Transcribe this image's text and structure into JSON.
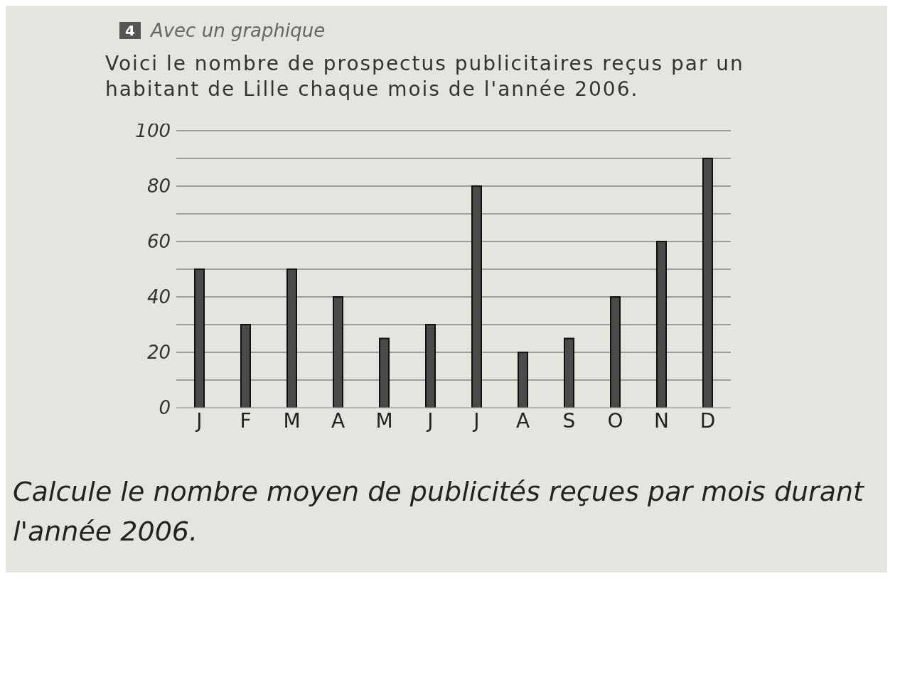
{
  "chart_data": {
    "type": "bar",
    "title": "Avec un graphique",
    "subtitle": "Voici le nombre de prospectus publicitaires reçus par un habitant de Lille chaque mois de l'année 2006.",
    "categories": [
      "J",
      "F",
      "M",
      "A",
      "M",
      "J",
      "J",
      "A",
      "S",
      "O",
      "N",
      "D"
    ],
    "values": [
      50,
      30,
      50,
      40,
      25,
      30,
      80,
      20,
      25,
      40,
      60,
      90
    ],
    "color": "#4a4a4a",
    "ylim": [
      0,
      100
    ],
    "yticks": [
      0,
      {
        "value": 10,
        "label": null
      },
      20,
      {
        "value": 30,
        "label": null
      },
      40,
      {
        "value": 50,
        "label": null
      },
      60,
      {
        "value": 70,
        "label": null
      },
      80,
      {
        "value": 90,
        "label": null
      },
      100
    ],
    "grid": "y",
    "annotations": [
      "4",
      "Calcule le nombre moyen de publicités reçues par mois durant l'année 2006."
    ]
  }
}
